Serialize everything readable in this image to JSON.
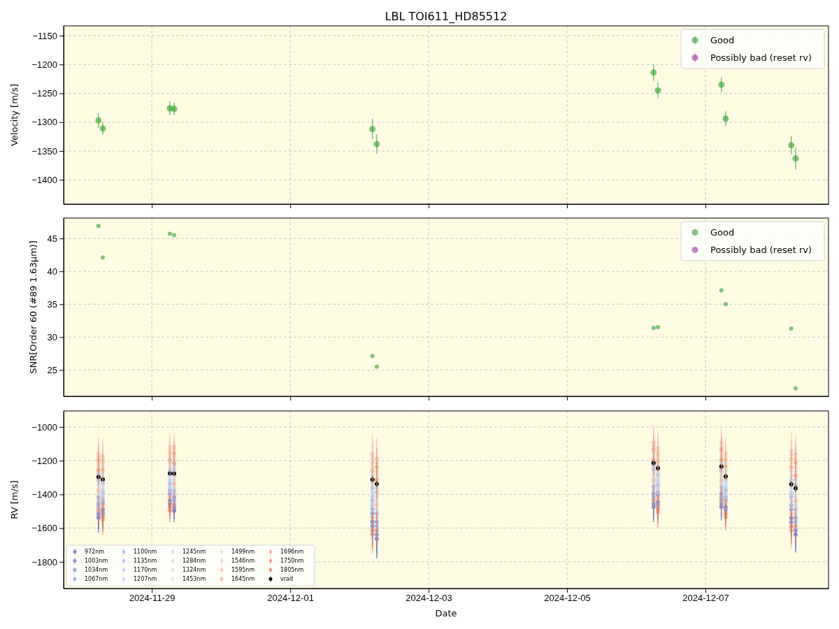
{
  "chart_data": [
    {
      "type": "scatter",
      "title": "LBL TOI611_HD85512",
      "ylabel": "Velocity [m/s]",
      "marker": "circle",
      "grid": true,
      "legend": "top right",
      "tick_labels": "y",
      "x": [
        "2024-11-28T05:30",
        "2024-11-28T07:00",
        "2024-11-29T06:15",
        "2024-11-29T07:45",
        "2024-12-02T04:30",
        "2024-12-02T06:00",
        "2024-12-06T06:00",
        "2024-12-06T07:30",
        "2024-12-07T05:30",
        "2024-12-07T07:00",
        "2024-12-08T05:45",
        "2024-12-08T07:15"
      ],
      "xlim": [
        "2024-11-27T17:25",
        "2024-12-08T18:40"
      ],
      "xticks": [
        "2024-11-29",
        "2024-12-01",
        "2024-12-03",
        "2024-12-05",
        "2024-12-07"
      ],
      "ylim": [
        -1442,
        -1133
      ],
      "yticks": [
        -1400,
        -1350,
        -1300,
        -1250,
        -1200,
        -1150
      ],
      "series": [
        {
          "name": "Good",
          "color": "#2ca02c",
          "values": [
            -1297,
            -1311,
            -1276,
            -1277,
            -1312,
            -1338,
            -1214,
            -1245,
            -1235,
            -1294,
            -1340,
            -1363
          ],
          "errors": [
            13,
            11,
            12,
            11,
            18,
            17,
            14,
            14,
            13,
            13,
            16,
            19
          ]
        },
        {
          "name": "Possibly bad (reset rv)",
          "color": "#9b2f9b",
          "values": [
            null,
            null,
            null,
            null,
            null,
            null,
            null,
            null,
            null,
            null,
            null,
            null
          ],
          "errors": [
            null,
            null,
            null,
            null,
            null,
            null,
            null,
            null,
            null,
            null,
            null,
            null
          ]
        }
      ]
    },
    {
      "type": "scatter",
      "ylabel": "SNR[Order 60 (#89 1.63μm)]",
      "marker": "circle",
      "grid": true,
      "legend": "top right",
      "tick_labels": "y",
      "x": [
        "2024-11-28T05:30",
        "2024-11-28T07:00",
        "2024-11-29T06:15",
        "2024-11-29T07:45",
        "2024-12-02T04:30",
        "2024-12-02T06:00",
        "2024-12-06T06:00",
        "2024-12-06T07:30",
        "2024-12-07T05:30",
        "2024-12-07T07:00",
        "2024-12-08T05:45",
        "2024-12-08T07:15"
      ],
      "xlim": [
        "2024-11-27T17:25",
        "2024-12-08T18:40"
      ],
      "xticks": [
        "2024-11-29",
        "2024-12-01",
        "2024-12-03",
        "2024-12-05",
        "2024-12-07"
      ],
      "ylim": [
        21.0,
        48.1
      ],
      "yticks": [
        25,
        30,
        35,
        40,
        45
      ],
      "series": [
        {
          "name": "Good",
          "color": "#2ca02c",
          "values": [
            46.9,
            42.1,
            45.7,
            45.5,
            27.1,
            25.5,
            31.4,
            31.5,
            37.1,
            35.0,
            31.3,
            22.2
          ]
        },
        {
          "name": "Possibly bad (reset rv)",
          "color": "#9b2f9b",
          "values": [
            null,
            null,
            null,
            null,
            null,
            null,
            null,
            null,
            null,
            null,
            null,
            null
          ]
        }
      ]
    },
    {
      "type": "scatter",
      "xlabel": "Date",
      "ylabel": "RV [m/s]",
      "marker": "circle",
      "grid": true,
      "legend": "bottom left",
      "x": [
        "2024-11-28T05:30",
        "2024-11-28T07:00",
        "2024-11-29T06:15",
        "2024-11-29T07:45",
        "2024-12-02T04:30",
        "2024-12-02T06:00",
        "2024-12-06T06:00",
        "2024-12-06T07:30",
        "2024-12-07T05:30",
        "2024-12-07T07:00",
        "2024-12-08T05:45",
        "2024-12-08T07:15"
      ],
      "xlim": [
        "2024-11-27T17:25",
        "2024-12-08T18:40"
      ],
      "xticks": [
        "2024-11-29",
        "2024-12-01",
        "2024-12-03",
        "2024-12-05",
        "2024-12-07"
      ],
      "ylim": [
        -1958,
        -905
      ],
      "yticks": [
        -1800,
        -1600,
        -1400,
        -1200,
        -1000
      ],
      "series": [
        {
          "name": "972nm",
          "color": "#3b4cc0",
          "values": [
            -1537,
            -1491,
            -1436,
            -1497,
            -1562,
            -1663,
            -1474,
            -1445,
            -1475,
            -1474,
            -1540,
            -1638
          ],
          "errors": [
            90,
            90,
            70,
            70,
            110,
            110,
            90,
            90,
            80,
            80,
            100,
            100
          ]
        },
        {
          "name": "1003nm",
          "color": "#4a63d3",
          "values": [
            -1517,
            -1511,
            -1456,
            -1477,
            -1587,
            -1638,
            -1454,
            -1465,
            -1455,
            -1494,
            -1565,
            -1613
          ],
          "errors": [
            90,
            90,
            70,
            70,
            110,
            110,
            90,
            90,
            80,
            80,
            100,
            100
          ]
        },
        {
          "name": "1034nm",
          "color": "#5b7ae5",
          "values": [
            -1457,
            -1451,
            -1396,
            -1417,
            -1512,
            -1563,
            -1394,
            -1405,
            -1395,
            -1434,
            -1490,
            -1538
          ],
          "errors": [
            90,
            90,
            70,
            70,
            110,
            110,
            90,
            90,
            80,
            80,
            100,
            100
          ]
        },
        {
          "name": "1067nm",
          "color": "#6c8ff1",
          "values": [
            -1477,
            -1431,
            -1376,
            -1437,
            -1487,
            -1588,
            -1414,
            -1385,
            -1415,
            -1414,
            -1465,
            -1563
          ],
          "errors": [
            90,
            90,
            70,
            70,
            110,
            195,
            110,
            90,
            80,
            80,
            100,
            185
          ]
        },
        {
          "name": "1100nm",
          "color": "#7ea1fa",
          "values": [
            -1417,
            -1391,
            -1336,
            -1377,
            -1437,
            -1513,
            -1354,
            -1345,
            -1355,
            -1374,
            -1415,
            -1488
          ],
          "errors": [
            100,
            100,
            80,
            80,
            120,
            120,
            100,
            100,
            90,
            90,
            110,
            110
          ]
        },
        {
          "name": "1135nm",
          "color": "#90b2fe",
          "values": [
            -1317,
            -1331,
            -1256,
            -1257,
            -1362,
            -1388,
            -1254,
            -1285,
            -1255,
            -1314,
            -1315,
            -1338
          ],
          "errors": [
            100,
            100,
            80,
            90,
            120,
            120,
            100,
            100,
            90,
            90,
            110,
            110
          ]
        },
        {
          "name": "1170nm",
          "color": "#a3c2fe",
          "values": [
            -1277,
            -1371,
            -1316,
            -1237,
            -1412,
            -1363,
            -1234,
            -1325,
            -1215,
            -1354,
            -1390,
            -1313
          ],
          "errors": [
            90,
            100,
            80,
            80,
            120,
            120,
            100,
            100,
            90,
            90,
            110,
            110
          ]
        },
        {
          "name": "1207nm",
          "color": "#b5cffb",
          "values": [
            -1437,
            -1411,
            -1356,
            -1397,
            -1462,
            -1538,
            -1374,
            -1365,
            -1375,
            -1394,
            -1440,
            -1513
          ],
          "errors": [
            110,
            110,
            90,
            90,
            130,
            130,
            110,
            110,
            100,
            100,
            100,
            100
          ]
        },
        {
          "name": "1245nm",
          "color": "#c4d5f3",
          "values": [
            -1397,
            -1351,
            -1296,
            -1357,
            -1387,
            -1488,
            -1334,
            -1305,
            -1335,
            -1334,
            -1365,
            -1463
          ],
          "errors": [
            110,
            110,
            90,
            90,
            130,
            130,
            110,
            110,
            170,
            100,
            150,
            150
          ]
        },
        {
          "name": "1284nm",
          "color": "#cdd9ec",
          "values": [
            -1337,
            -1271,
            -1216,
            -1297,
            -1287,
            -1413,
            -1274,
            -1225,
            -1275,
            -1254,
            -1265,
            -1388
          ],
          "errors": [
            110,
            110,
            90,
            90,
            130,
            130,
            110,
            110,
            100,
            100,
            120,
            120
          ]
        },
        {
          "name": "1324nm",
          "color": "#d5dbe5",
          "values": [
            -1357,
            -1291,
            -1236,
            -1317,
            -1337,
            -1438,
            -1294,
            -1265,
            -1295,
            -1274,
            -1290,
            -1413
          ],
          "errors": [
            110,
            110,
            90,
            90,
            130,
            130,
            110,
            110,
            100,
            100,
            120,
            120
          ]
        },
        {
          "name": "1453nm",
          "color": "#e2dad5",
          "values": [
            -1237,
            -1231,
            -1176,
            -1197,
            -1237,
            -1288,
            -1174,
            -1185,
            -1175,
            -1214,
            -1215,
            -1263
          ],
          "errors": [
            110,
            110,
            90,
            90,
            130,
            130,
            110,
            110,
            100,
            100,
            120,
            120
          ]
        },
        {
          "name": "1499nm",
          "color": "#ecd3c5",
          "values": [
            -1217,
            -1191,
            -1136,
            -1177,
            -1187,
            -1263,
            -1154,
            -1145,
            -1155,
            -1174,
            -1165,
            -1238
          ],
          "errors": [
            100,
            100,
            80,
            80,
            120,
            120,
            100,
            100,
            90,
            90,
            110,
            110
          ]
        },
        {
          "name": "1546nm",
          "color": "#f3c7b1",
          "values": [
            -1177,
            -1171,
            -1116,
            -1137,
            -1162,
            -1213,
            -1114,
            -1125,
            -1115,
            -1154,
            -1140,
            -1188
          ],
          "errors": [
            100,
            100,
            80,
            80,
            120,
            120,
            100,
            100,
            90,
            90,
            110,
            110
          ]
        },
        {
          "name": "1595nm",
          "color": "#f6b89c",
          "values": [
            -1157,
            -1211,
            -1156,
            -1117,
            -1212,
            -1188,
            -1094,
            -1165,
            -1095,
            -1194,
            -1190,
            -1163
          ],
          "errors": [
            100,
            100,
            80,
            80,
            120,
            120,
            100,
            100,
            90,
            90,
            110,
            110
          ]
        },
        {
          "name": "1645nm",
          "color": "#f5a688",
          "values": [
            -1377,
            -1471,
            -1416,
            -1337,
            -1537,
            -1463,
            -1314,
            -1425,
            -1315,
            -1454,
            -1515,
            -1438
          ],
          "errors": [
            100,
            100,
            80,
            80,
            120,
            120,
            110,
            100,
            90,
            90,
            110,
            110
          ]
        },
        {
          "name": "1696nm",
          "color": "#f09475",
          "values": [
            -1197,
            -1251,
            -1196,
            -1157,
            -1262,
            -1238,
            -1134,
            -1205,
            -1135,
            -1234,
            -1240,
            -1213
          ],
          "errors": [
            90,
            90,
            70,
            70,
            110,
            110,
            90,
            90,
            80,
            80,
            100,
            100
          ]
        },
        {
          "name": "1750nm",
          "color": "#e8805f",
          "values": [
            -1257,
            -1551,
            -1496,
            -1217,
            -1637,
            -1313,
            -1194,
            -1505,
            -1195,
            -1534,
            -1615,
            -1288
          ],
          "errors": [
            90,
            90,
            70,
            70,
            110,
            110,
            90,
            90,
            80,
            80,
            100,
            100
          ]
        },
        {
          "name": "1805nm",
          "color": "#db6a52",
          "values": [
            -1497,
            -1531,
            -1476,
            -1457,
            -1612,
            -1613,
            -1434,
            -1485,
            -1435,
            -1514,
            -1590,
            -1588
          ],
          "errors": [
            90,
            90,
            70,
            70,
            110,
            110,
            90,
            90,
            80,
            80,
            100,
            100
          ]
        },
        {
          "name": "vrad",
          "color": "#000000",
          "values": [
            -1297,
            -1311,
            -1276,
            -1277,
            -1312,
            -1338,
            -1214,
            -1245,
            -1235,
            -1294,
            -1340,
            -1363
          ],
          "errors": [
            13,
            11,
            12,
            11,
            18,
            17,
            14,
            14,
            13,
            13,
            16,
            19
          ]
        }
      ]
    }
  ]
}
